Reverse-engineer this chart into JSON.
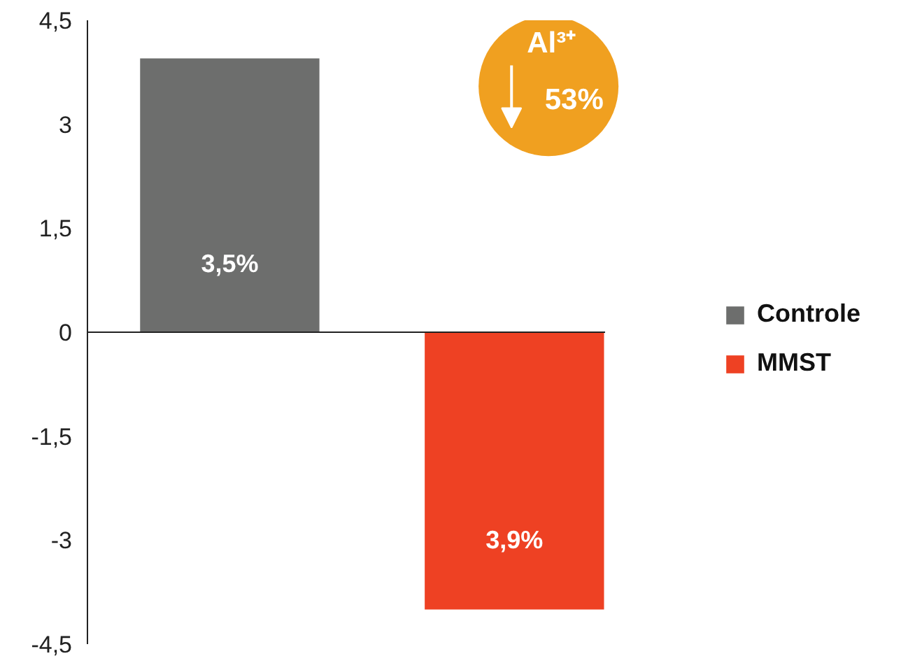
{
  "chart_data": {
    "type": "bar",
    "categories": [
      null
    ],
    "series": [
      {
        "name": "Controle",
        "color": "#6d6e6d",
        "values": [
          3.95
        ]
      },
      {
        "name": "MMST",
        "color": "#ee4123",
        "values": [
          -4.0
        ]
      }
    ],
    "ylim": [
      -4.5,
      4.5
    ],
    "yticks": [
      {
        "value": 4.5,
        "label": "4,5"
      },
      3,
      {
        "value": 1.5,
        "label": "1,5"
      },
      0,
      {
        "value": -1.5,
        "label": "-1,5"
      },
      -3,
      {
        "value": -4.5,
        "label": "-4,5"
      }
    ],
    "annotations": [
      "3,5%",
      "3,9%",
      "Al³⁺",
      "53%"
    ],
    "tick_labels": "y",
    "legend": "right"
  }
}
